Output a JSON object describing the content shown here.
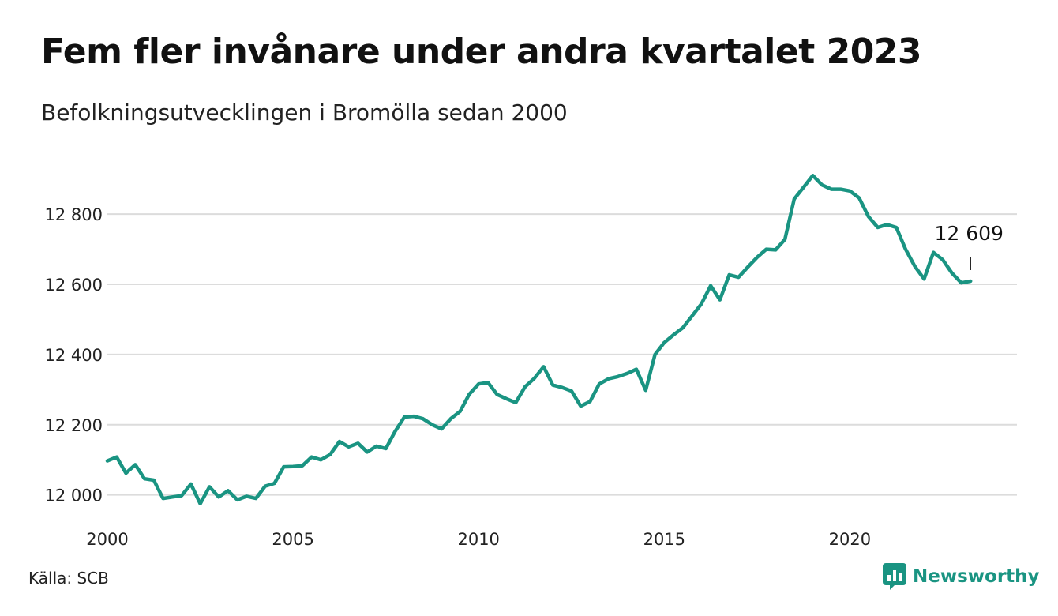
{
  "title": "Fem fler invånare under andra kvartalet 2023",
  "subtitle": "Befolkningsutvecklingen i Bromölla sedan 2000",
  "source": "Källa: SCB",
  "brand": {
    "name": "Newsworthy",
    "icon": "newsworthy-logo-icon",
    "color": "#1a9482"
  },
  "chart_data": {
    "type": "line",
    "title": "Fem fler invånare under andra kvartalet 2023",
    "subtitle": "Befolkningsutvecklingen i Bromölla sedan 2000",
    "xlabel": "",
    "ylabel": "",
    "xlim": [
      2000,
      2024.5
    ],
    "ylim": [
      11970,
      12960
    ],
    "x_ticks": [
      2000,
      2005,
      2010,
      2015,
      2020
    ],
    "x_tick_labels": [
      "2000",
      "2005",
      "2010",
      "2015",
      "2020"
    ],
    "y_ticks": [
      12000,
      12200,
      12400,
      12600,
      12800
    ],
    "y_tick_labels": [
      "12 000",
      "12 200",
      "12 400",
      "12 600",
      "12 800"
    ],
    "grid": "horizontal",
    "legend": "none",
    "line_color": "#1a9482",
    "series": [
      {
        "x": [
          2000,
          2000.25,
          2000.5,
          2000.75,
          2001,
          2001.25,
          2001.5,
          2001.75,
          2002,
          2002.25,
          2002.5,
          2002.75,
          2003,
          2003.25,
          2003.5,
          2003.75,
          2004,
          2004.25,
          2004.5,
          2004.75,
          2005,
          2005.25,
          2005.5,
          2005.75,
          2006,
          2006.25,
          2006.5,
          2006.75,
          2007,
          2007.25,
          2007.5,
          2007.75,
          2008,
          2008.25,
          2008.5,
          2008.75,
          2009,
          2009.25,
          2009.5,
          2009.75,
          2010,
          2010.25,
          2010.5,
          2010.75,
          2011,
          2011.25,
          2011.5,
          2011.75,
          2012,
          2012.25,
          2012.5,
          2012.75,
          2013,
          2013.25,
          2013.5,
          2013.75,
          2014,
          2014.25,
          2014.5,
          2014.75,
          2015,
          2015.25,
          2015.5,
          2015.75,
          2016,
          2016.25,
          2016.5,
          2016.75,
          2017,
          2017.25,
          2017.5,
          2017.75,
          2018,
          2018.25,
          2018.5,
          2018.75,
          2019,
          2019.25,
          2019.5,
          2019.75,
          2020,
          2020.25,
          2020.5,
          2020.75,
          2021,
          2021.25,
          2021.5,
          2021.75,
          2022,
          2022.25,
          2022.5,
          2022.75,
          2023,
          2023.25
        ],
        "values": [
          12097,
          12108,
          12062,
          12086,
          12046,
          12042,
          11990,
          11994,
          11998,
          12031,
          11975,
          12023,
          11994,
          12012,
          11986,
          11996,
          11990,
          12025,
          12033,
          12080,
          12081,
          12083,
          12108,
          12100,
          12115,
          12152,
          12137,
          12147,
          12122,
          12139,
          12132,
          12181,
          12222,
          12224,
          12217,
          12200,
          12188,
          12217,
          12238,
          12287,
          12316,
          12320,
          12286,
          12274,
          12263,
          12308,
          12332,
          12365,
          12313,
          12306,
          12296,
          12253,
          12266,
          12316,
          12331,
          12337,
          12346,
          12358,
          12298,
          12400,
          12434,
          12456,
          12476,
          12510,
          12544,
          12596,
          12556,
          12627,
          12620,
          12649,
          12677,
          12700,
          12698,
          12728,
          12843,
          12876,
          12910,
          12883,
          12871,
          12871,
          12866,
          12846,
          12793,
          12762,
          12770,
          12762,
          12700,
          12651,
          12615,
          12691,
          12670,
          12632,
          12604,
          12609
        ]
      }
    ],
    "annotations": [
      {
        "x": 2023.25,
        "y": 12609,
        "text": "12 609"
      }
    ]
  }
}
